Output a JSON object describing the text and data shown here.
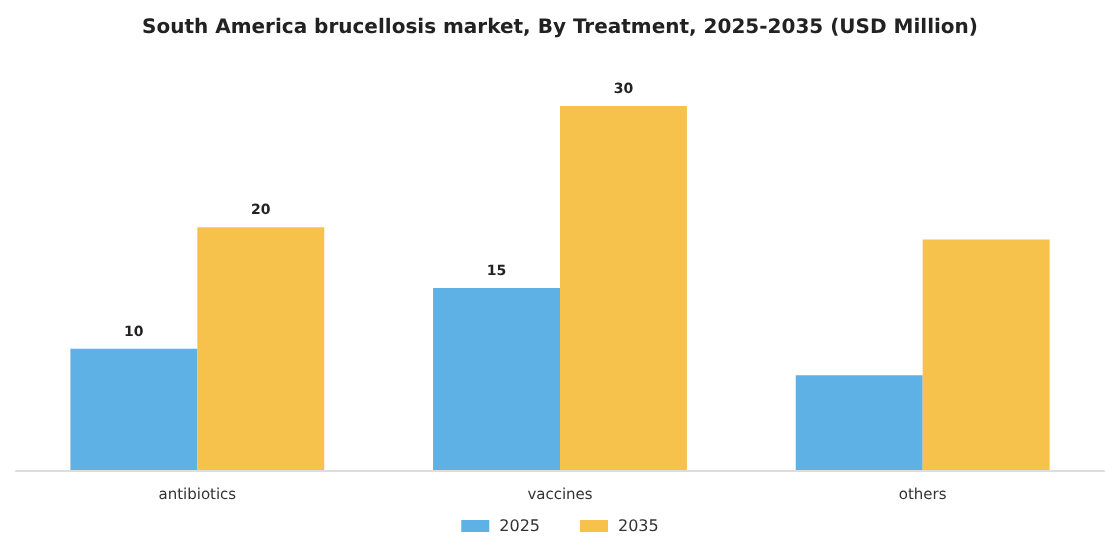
{
  "chart_data": {
    "type": "bar",
    "title": "South America brucellosis market, By Treatment, 2025-2035 (USD Million)",
    "categories": [
      "antibiotics",
      "vaccines",
      "others"
    ],
    "series": [
      {
        "name": "2025",
        "color": "#5db1e4",
        "values": [
          10,
          15,
          7.8
        ],
        "value_labels": [
          "10",
          "15",
          null
        ]
      },
      {
        "name": "2035",
        "color": "#f7c24b",
        "values": [
          20,
          30,
          19
        ],
        "value_labels": [
          "20",
          "30",
          null
        ]
      }
    ],
    "legend": "bottom",
    "grid": false
  }
}
